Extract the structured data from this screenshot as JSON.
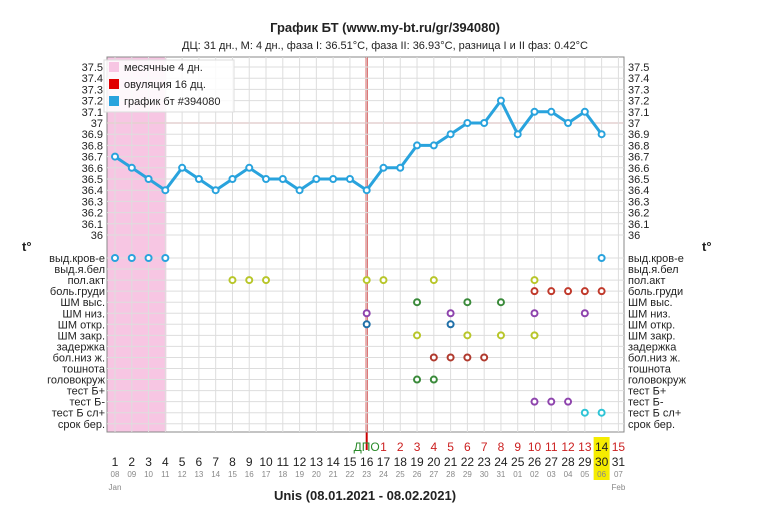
{
  "title": "График БТ (www.my-bt.ru/gr/394080)",
  "subtitle": "ДЦ: 31 дн., М: 4 дн., фаза I: 36.51°C, фаза II: 36.93°C, разница I и II фаз: 0.42°C",
  "footer": "Unis (08.01.2021 - 08.02.2021)",
  "axis_symbol": "t°",
  "month_labels": [
    "Jan",
    "Feb"
  ],
  "legend": [
    {
      "label": "месячные 4 дн.",
      "color": "#f7c6e3"
    },
    {
      "label": "овуляция 16 дц.",
      "color": "#e00000"
    },
    {
      "label": "график бт #394080",
      "color": "#29a3dd"
    }
  ],
  "dpo_label": "ДПО",
  "today_highlight_color": "#f5ec00",
  "colors": {
    "line": "#29a3dd",
    "menses": "#f7c6e3",
    "ovulation": "#cc0000",
    "coverline": "#f4b6b6",
    "grid": "#dddddd",
    "dpo": "#cc2020"
  },
  "chart_data": {
    "type": "line",
    "title": "График БТ (www.my-bt.ru/gr/394080)",
    "ylabel": "t°",
    "ylim": [
      36.0,
      37.5
    ],
    "yticks": [
      "37.5",
      "37.4",
      "37.3",
      "37.2",
      "37.1",
      "37",
      "36.9",
      "36.8",
      "36.7",
      "36.6",
      "36.5",
      "36.4",
      "36.3",
      "36.2",
      "36.1",
      "36"
    ],
    "coverline": 37.0,
    "ovulation_day": 16,
    "menses_days": 4,
    "cycle_days": [
      1,
      2,
      3,
      4,
      5,
      6,
      7,
      8,
      9,
      10,
      11,
      12,
      13,
      14,
      15,
      16,
      17,
      18,
      19,
      20,
      21,
      22,
      23,
      24,
      25,
      26,
      27,
      28,
      29,
      30,
      31
    ],
    "dates": [
      "08",
      "09",
      "10",
      "11",
      "12",
      "13",
      "14",
      "15",
      "16",
      "17",
      "18",
      "19",
      "20",
      "21",
      "22",
      "23",
      "24",
      "25",
      "26",
      "27",
      "28",
      "29",
      "30",
      "31",
      "01",
      "02",
      "03",
      "04",
      "05",
      "06",
      "07"
    ],
    "dpo_days": [
      "1",
      "2",
      "3",
      "4",
      "5",
      "6",
      "7",
      "8",
      "9",
      "10",
      "11",
      "12",
      "13",
      "14",
      "15"
    ],
    "today_day": 30,
    "temperatures": [
      36.7,
      36.6,
      36.5,
      36.4,
      36.6,
      36.5,
      36.4,
      36.5,
      36.6,
      36.5,
      36.5,
      36.4,
      36.5,
      36.5,
      36.5,
      36.4,
      36.6,
      36.6,
      36.8,
      36.8,
      36.9,
      37.0,
      37.0,
      37.2,
      36.9,
      37.1,
      37.1,
      37.0,
      37.1,
      36.9,
      null
    ],
    "symptoms": [
      {
        "label": "выд.кров-е",
        "color": "#29a3dd",
        "days": [
          1,
          2,
          3,
          4,
          30
        ]
      },
      {
        "label": "выд.я.бел",
        "color": "#999999",
        "days": []
      },
      {
        "label": "пол.акт",
        "color": "#b8c62a",
        "days": [
          8,
          9,
          10,
          16,
          17,
          20,
          26
        ]
      },
      {
        "label": "боль.груди",
        "color": "#c0392b",
        "days": [
          26,
          27,
          28,
          29,
          30
        ]
      },
      {
        "label": "ШМ выс.",
        "color": "#3a8a3a",
        "days": [
          19,
          22,
          24
        ]
      },
      {
        "label": "ШМ низ.",
        "color": "#8e44ad",
        "days": [
          16,
          21,
          26,
          29
        ]
      },
      {
        "label": "ШМ откр.",
        "color": "#1f6fa8",
        "days": [
          16,
          21
        ]
      },
      {
        "label": "ШМ закр.",
        "color": "#b8c62a",
        "days": [
          19,
          22,
          24,
          26
        ]
      },
      {
        "label": "задержка",
        "color": "#999999",
        "days": []
      },
      {
        "label": "бол.низ ж.",
        "color": "#b03a2e",
        "days": [
          20,
          21,
          22,
          23
        ]
      },
      {
        "label": "тошнота",
        "color": "#999999",
        "days": []
      },
      {
        "label": "головокруж",
        "color": "#3a8a3a",
        "days": [
          19,
          20
        ]
      },
      {
        "label": "тест Б+",
        "color": "#999999",
        "days": []
      },
      {
        "label": "тест Б-",
        "color": "#8e44ad",
        "days": [
          26,
          27,
          28
        ]
      },
      {
        "label": "тест Б сл+",
        "color": "#2ec4d6",
        "days": [
          29,
          30
        ]
      },
      {
        "label": "срок бер.",
        "color": "#999999",
        "days": []
      }
    ]
  }
}
